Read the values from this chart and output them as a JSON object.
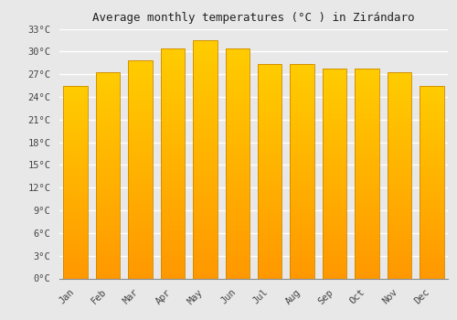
{
  "title": "Average monthly temperatures (°C ) in Zirándaro",
  "months": [
    "Jan",
    "Feb",
    "Mar",
    "Apr",
    "May",
    "Jun",
    "Jul",
    "Aug",
    "Sep",
    "Oct",
    "Nov",
    "Dec"
  ],
  "values": [
    25.5,
    27.2,
    28.8,
    30.4,
    31.5,
    30.4,
    28.4,
    28.3,
    27.8,
    27.8,
    27.2,
    25.5
  ],
  "ylim": [
    0,
    33
  ],
  "yticks": [
    0,
    3,
    6,
    9,
    12,
    15,
    18,
    21,
    24,
    27,
    30,
    33
  ],
  "bar_color_top": "#FFCC00",
  "bar_color_bottom": "#FF9800",
  "background_color": "#e8e8e8",
  "plot_bg_color": "#e8e8e8",
  "grid_color": "#ffffff",
  "bar_edge_color": "#cc8800",
  "title_fontsize": 9,
  "tick_fontsize": 7.5,
  "font_family": "monospace"
}
